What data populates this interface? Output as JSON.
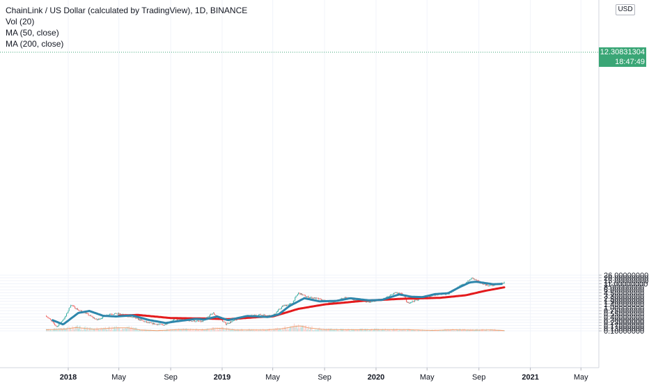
{
  "legend": {
    "title": "ChainLink / US Dollar (calculated by TradingView), 1D, BINANCE",
    "volume": "Vol (20)",
    "ma50": "MA (50, close)",
    "ma200": "MA (200, close)"
  },
  "currency_button": "USD",
  "last_price_label": "12.30831304",
  "countdown_label": "18:47:49",
  "colors": {
    "up": "#26a69a",
    "down": "#ef5350",
    "ma50": "#2e86ab",
    "ma200": "#e31a1c",
    "volume_ma": "#f0a070",
    "price_tag": "#3aa676",
    "axis_text": "#131722",
    "grid": "#f0f3fa"
  },
  "chart_data": {
    "type": "line",
    "y_scale": "log",
    "y_ticks": [
      "26.00000000",
      "20.00000000",
      "15.00000000",
      "11.00000000",
      "8.00000000",
      "6.00000000",
      "4.50000000",
      "3.30000000",
      "2.50000000",
      "1.90000000",
      "1.40000000",
      "1.00000000",
      "0.75000000",
      "0.55000000",
      "0.40000000",
      "0.30000000",
      "0.23000000",
      "0.17000000",
      "0.13000000",
      "0.10000000"
    ],
    "x_ticks": [
      "2018",
      "May",
      "Sep",
      "2019",
      "May",
      "Sep",
      "2020",
      "May",
      "Sep",
      "2021",
      "May"
    ],
    "ma200": {
      "x": [
        "2018-05-01",
        "2018-06-15",
        "2018-09-01",
        "2018-12-01",
        "2019-01-15",
        "2019-04-01",
        "2019-05-01",
        "2019-07-01",
        "2019-09-01",
        "2019-12-01",
        "2020-03-01",
        "2020-06-01",
        "2020-08-01",
        "2020-09-15",
        "2020-10-31"
      ],
      "y": [
        0.46,
        0.49,
        0.36,
        0.34,
        0.32,
        0.4,
        0.42,
        0.9,
        1.4,
        2.0,
        2.45,
        2.7,
        3.5,
        5.4,
        7.7
      ]
    },
    "ma50": {
      "x": [
        "2017-11-25",
        "2017-12-20",
        "2018-01-25",
        "2018-02-20",
        "2018-03-25",
        "2018-04-25",
        "2018-06-01",
        "2018-07-10",
        "2018-08-20",
        "2018-09-15",
        "2018-11-01",
        "2018-11-20",
        "2018-12-20",
        "2019-01-15",
        "2019-03-01",
        "2019-04-20",
        "2019-05-15",
        "2019-06-10",
        "2019-07-15",
        "2019-08-20",
        "2019-09-30",
        "2019-11-01",
        "2019-12-15",
        "2020-01-15",
        "2020-02-25",
        "2020-03-25",
        "2020-04-20",
        "2020-05-20",
        "2020-06-20",
        "2020-07-15",
        "2020-08-10",
        "2020-08-25",
        "2020-09-20",
        "2020-10-05",
        "2020-10-25"
      ],
      "y": [
        0.29,
        0.19,
        0.6,
        0.73,
        0.45,
        0.42,
        0.47,
        0.3,
        0.22,
        0.26,
        0.33,
        0.31,
        0.42,
        0.29,
        0.44,
        0.4,
        0.52,
        1.2,
        2.6,
        1.9,
        2.0,
        2.6,
        2.1,
        2.2,
        3.8,
        3.0,
        2.9,
        3.9,
        4.3,
        7.5,
        12.5,
        13.5,
        11.5,
        10.5,
        10.8
      ]
    },
    "close": {
      "x": [
        "2017-11-10",
        "2017-12-05",
        "2017-12-25",
        "2018-01-07",
        "2018-01-25",
        "2018-02-10",
        "2018-03-10",
        "2018-04-10",
        "2018-05-01",
        "2018-06-10",
        "2018-07-10",
        "2018-08-15",
        "2018-09-10",
        "2018-10-15",
        "2018-11-15",
        "2018-12-10",
        "2019-01-10",
        "2019-02-20",
        "2019-04-01",
        "2019-05-01",
        "2019-05-25",
        "2019-06-15",
        "2019-07-01",
        "2019-07-20",
        "2019-08-15",
        "2019-09-15",
        "2019-10-20",
        "2019-11-20",
        "2019-12-20",
        "2020-01-20",
        "2020-02-15",
        "2020-03-05",
        "2020-03-15",
        "2020-04-10",
        "2020-05-15",
        "2020-06-20",
        "2020-07-15",
        "2020-08-01",
        "2020-08-16",
        "2020-09-05",
        "2020-09-25",
        "2020-10-15",
        "2020-10-31"
      ],
      "y": [
        0.45,
        0.15,
        0.4,
        1.35,
        0.8,
        0.6,
        0.3,
        0.55,
        0.55,
        0.35,
        0.22,
        0.18,
        0.32,
        0.28,
        0.25,
        0.6,
        0.2,
        0.4,
        0.5,
        0.45,
        1.2,
        1.5,
        4.4,
        3.0,
        2.5,
        1.6,
        2.8,
        2.0,
        1.8,
        2.4,
        4.5,
        3.9,
        1.6,
        2.3,
        3.6,
        4.1,
        8.0,
        12.0,
        19.5,
        12.0,
        9.0,
        10.5,
        12.3
      ]
    },
    "volume_ma": {
      "x": [
        "2017-11-10",
        "2017-12-25",
        "2018-01-20",
        "2018-03-01",
        "2018-04-25",
        "2018-05-25",
        "2018-06-20",
        "2018-08-01",
        "2018-09-20",
        "2018-11-20",
        "2018-12-25",
        "2019-02-01",
        "2019-04-15",
        "2019-05-25",
        "2019-06-20",
        "2019-07-05",
        "2019-07-25",
        "2019-08-30",
        "2019-10-15",
        "2019-11-20",
        "2020-01-15",
        "2020-03-15",
        "2020-05-15",
        "2020-07-01",
        "2020-08-20",
        "2020-10-01",
        "2020-10-31"
      ],
      "y": [
        0.112,
        0.12,
        0.14,
        0.118,
        0.135,
        0.135,
        0.11,
        0.103,
        0.115,
        0.112,
        0.13,
        0.11,
        0.11,
        0.125,
        0.155,
        0.165,
        0.135,
        0.115,
        0.112,
        0.112,
        0.113,
        0.113,
        0.105,
        0.112,
        0.108,
        0.11,
        0.103
      ]
    }
  }
}
